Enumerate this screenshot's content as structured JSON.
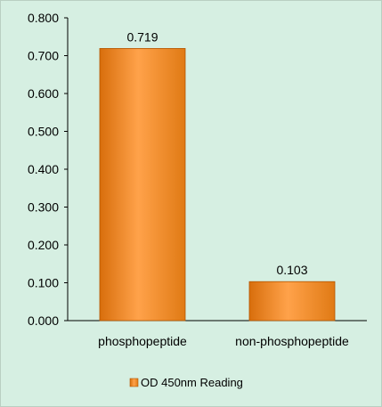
{
  "chart_data": {
    "type": "bar",
    "categories": [
      "phosphopeptide",
      "non-phosphopeptide"
    ],
    "series": [
      {
        "name": "OD 450nm Reading",
        "values": [
          0.719,
          0.103
        ]
      }
    ],
    "data_labels": [
      "0.719",
      "0.103"
    ],
    "ylim": [
      0,
      0.8
    ],
    "yticks": [
      "0.000",
      "0.100",
      "0.200",
      "0.300",
      "0.400",
      "0.500",
      "0.600",
      "0.700",
      "0.800"
    ],
    "grid": false,
    "legend": "bottom",
    "colors": {
      "background": "#d6efe2",
      "bar_light": "#ffb060",
      "bar_mid": "#f28a1e",
      "bar_dark": "#c05a00",
      "axis": "#000000"
    }
  }
}
